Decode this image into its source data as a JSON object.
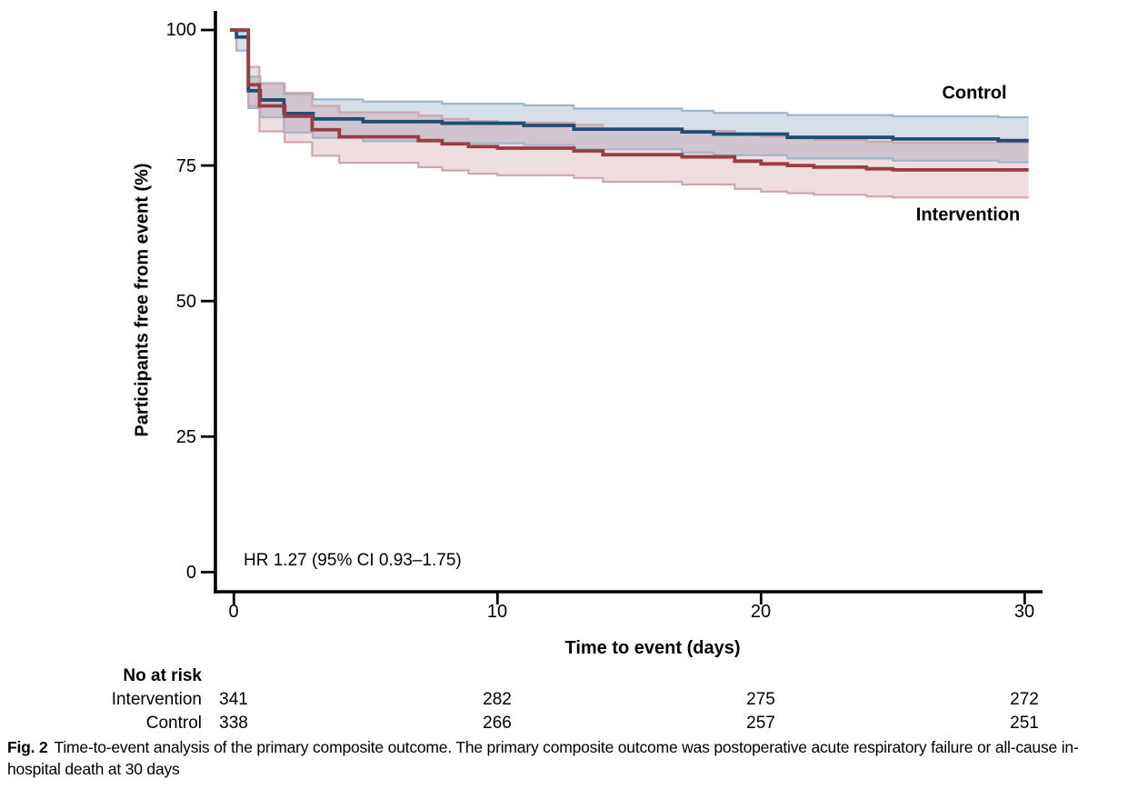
{
  "chart_data": {
    "type": "line",
    "subtype": "kaplan-meier-step",
    "title": "",
    "xlabel": "Time to event (days)",
    "ylabel": "Participants free from event (%)",
    "xlim": [
      0,
      30
    ],
    "ylim": [
      0,
      100
    ],
    "x_ticks": [
      0,
      10,
      20,
      30
    ],
    "y_ticks": [
      0,
      25,
      50,
      75,
      100
    ],
    "grid": false,
    "legend_position": "curve-end-labels",
    "annotation": "HR 1.27 (95% CI 0.93–1.75)",
    "end_time": 30.15,
    "series": [
      {
        "name": "Control",
        "color": "#1f4e70",
        "band_fill": "rgba(98,130,168,0.26)",
        "band_edge": "#9fb5ca",
        "times": [
          0,
          0.1,
          0.55,
          1.0,
          1.9,
          3.0,
          4.9,
          7.9,
          11,
          12.9,
          17,
          18.2,
          21,
          25,
          29
        ],
        "values": [
          100,
          98.7,
          88.8,
          87.1,
          84.6,
          83.6,
          83.1,
          82.8,
          82.4,
          81.7,
          81.2,
          80.8,
          80.2,
          79.9,
          79.6
        ],
        "upper": [
          100,
          99.7,
          91.4,
          90.2,
          88.2,
          87.2,
          86.8,
          86.4,
          86.1,
          85.5,
          85.1,
          84.7,
          84.3,
          84.1,
          83.9
        ],
        "lower": [
          100,
          96.2,
          85.6,
          83.9,
          81.1,
          80.1,
          79.5,
          79.1,
          78.8,
          78.0,
          77.4,
          76.9,
          76.3,
          75.9,
          75.6
        ]
      },
      {
        "name": "Intervention",
        "color": "#9c3a45",
        "band_fill": "rgba(188,116,126,0.24)",
        "band_edge": "#d0a6ae",
        "times": [
          0,
          0.55,
          0.97,
          1.93,
          2.97,
          4.0,
          7.0,
          7.9,
          8.9,
          10,
          12.9,
          14,
          17,
          19,
          20,
          21,
          22,
          24,
          25
        ],
        "values": [
          100,
          89.9,
          86.0,
          84.1,
          81.6,
          80.3,
          79.6,
          79.0,
          78.5,
          78.2,
          77.7,
          77.0,
          76.6,
          75.8,
          75.3,
          75.0,
          74.7,
          74.4,
          74.2
        ],
        "upper": [
          100,
          93.2,
          90.1,
          88.4,
          86.0,
          84.8,
          84.2,
          83.6,
          83.2,
          82.9,
          82.5,
          81.8,
          81.4,
          80.7,
          80.3,
          80.0,
          79.7,
          79.4,
          79.2
        ],
        "lower": [
          100,
          86.0,
          81.3,
          79.3,
          76.8,
          75.5,
          74.7,
          74.1,
          73.5,
          73.2,
          72.7,
          72.0,
          71.5,
          70.7,
          70.2,
          69.9,
          69.6,
          69.3,
          69.1
        ]
      }
    ]
  },
  "risk_table": {
    "title": "No at risk",
    "rows": [
      {
        "label": "Intervention",
        "counts": [
          "341",
          "282",
          "275",
          "272"
        ]
      },
      {
        "label": "Control",
        "counts": [
          "338",
          "266",
          "257",
          "251"
        ]
      }
    ]
  },
  "caption": {
    "prefix": "Fig. 2",
    "text": "Time-to-event analysis of the primary composite outcome. The primary composite outcome was postoperative acute respiratory failure or all-cause in-hospital death at 30 days"
  },
  "colors": {
    "axis": "#000000",
    "control_line": "#1f4e70",
    "intervention_line": "#9c3a45"
  }
}
